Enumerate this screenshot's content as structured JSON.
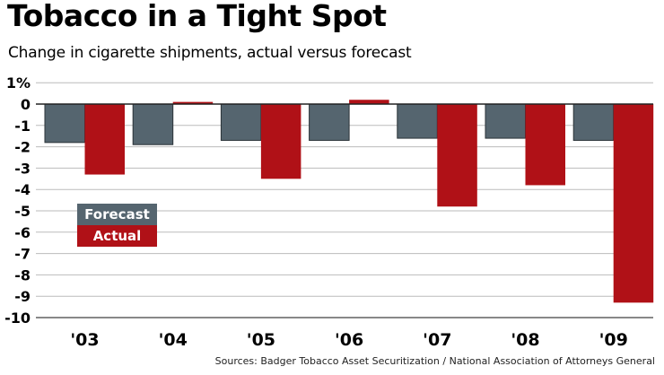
{
  "title": "Tobacco in a Tight Spot",
  "subtitle": "Change in cigarette shipments, actual versus forecast",
  "source": "Sources: Badger Tobacco Asset Securitization / National Association of Attorneys General",
  "colors": {
    "forecast": "#55656f",
    "actual": "#b01117",
    "grid": "#bbbbbb",
    "baseline": "#222222"
  },
  "legend": {
    "forecast_label": "Forecast",
    "actual_label": "Actual"
  },
  "chart_data": {
    "type": "bar",
    "title": "Tobacco in a Tight Spot",
    "subtitle": "Change in cigarette shipments, actual versus forecast",
    "xlabel": "",
    "ylabel": "",
    "categories": [
      "'03",
      "'04",
      "'05",
      "'06",
      "'07",
      "'08",
      "'09"
    ],
    "series": [
      {
        "name": "Forecast",
        "values": [
          -1.8,
          -1.9,
          -1.7,
          -1.7,
          -1.6,
          -1.6,
          -1.7
        ]
      },
      {
        "name": "Actual",
        "values": [
          -3.3,
          0.1,
          -3.5,
          0.2,
          -4.8,
          -3.8,
          -9.3
        ]
      }
    ],
    "ylim": [
      -10,
      1
    ],
    "yticks": [
      1,
      0,
      -1,
      -2,
      -3,
      -4,
      -5,
      -6,
      -7,
      -8,
      -9,
      -10
    ],
    "ytick_labels": [
      "1%",
      "0",
      "-1",
      "-2",
      "-3",
      "-4",
      "-5",
      "-6",
      "-7",
      "-8",
      "-9",
      "-10"
    ],
    "grid": true,
    "legend_position": "middle-left"
  }
}
